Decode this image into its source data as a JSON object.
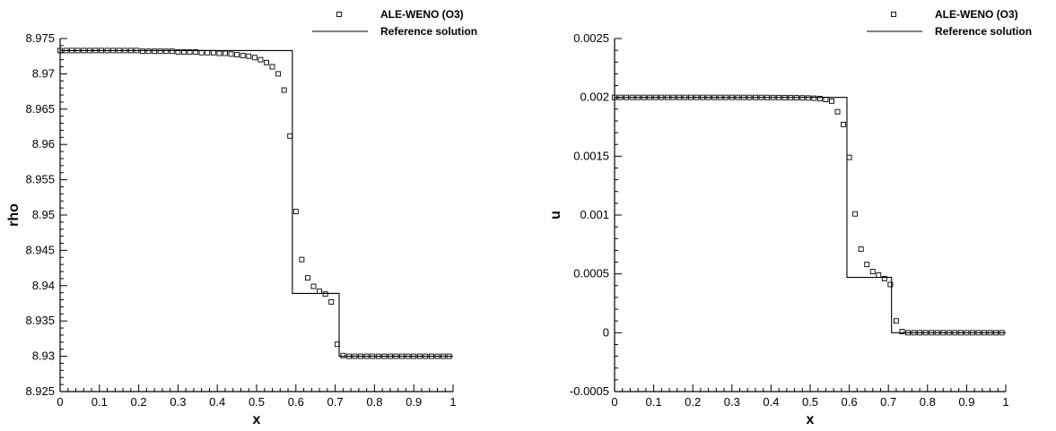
{
  "chart_data": [
    {
      "type": "line",
      "xlabel": "x",
      "ylabel": "rho",
      "xlim": [
        0,
        1
      ],
      "ylim": [
        8.925,
        8.975
      ],
      "xticks": [
        "0",
        "0.1",
        "0.2",
        "0.3",
        "0.4",
        "0.5",
        "0.6",
        "0.7",
        "0.8",
        "0.9",
        "1"
      ],
      "yticks": [
        "8.925",
        "8.93",
        "8.935",
        "8.94",
        "8.945",
        "8.95",
        "8.955",
        "8.96",
        "8.965",
        "8.97",
        "8.975"
      ],
      "legend_position": "top-right",
      "series": [
        {
          "name": "ALE-WENO (O3)",
          "marker": "square",
          "x": [
            0.0,
            0.015,
            0.03,
            0.045,
            0.06,
            0.075,
            0.09,
            0.105,
            0.12,
            0.135,
            0.15,
            0.165,
            0.18,
            0.195,
            0.21,
            0.225,
            0.24,
            0.255,
            0.27,
            0.285,
            0.3,
            0.315,
            0.33,
            0.345,
            0.36,
            0.375,
            0.39,
            0.405,
            0.42,
            0.435,
            0.45,
            0.465,
            0.48,
            0.495,
            0.51,
            0.525,
            0.54,
            0.555,
            0.57,
            0.585,
            0.6,
            0.615,
            0.63,
            0.645,
            0.66,
            0.675,
            0.69,
            0.705,
            0.72,
            0.735,
            0.75,
            0.765,
            0.78,
            0.795,
            0.81,
            0.825,
            0.84,
            0.855,
            0.87,
            0.885,
            0.9,
            0.915,
            0.93,
            0.945,
            0.96,
            0.975,
            0.99
          ],
          "y": [
            8.9733,
            8.9733,
            8.9733,
            8.9733,
            8.9733,
            8.9733,
            8.9733,
            8.9733,
            8.9733,
            8.9733,
            8.9733,
            8.9733,
            8.9733,
            8.9733,
            8.9732,
            8.9732,
            8.9732,
            8.9732,
            8.9732,
            8.9732,
            8.9731,
            8.9731,
            8.9731,
            8.9731,
            8.973,
            8.973,
            8.973,
            8.9729,
            8.9729,
            8.9728,
            8.9727,
            8.9726,
            8.9725,
            8.9723,
            8.972,
            8.9716,
            8.971,
            8.97,
            8.9677,
            8.9612,
            8.9505,
            8.9437,
            8.9411,
            8.9399,
            8.9392,
            8.9388,
            8.9377,
            8.9317,
            8.9301,
            8.93,
            8.93,
            8.93,
            8.93,
            8.93,
            8.93,
            8.93,
            8.93,
            8.93,
            8.93,
            8.93,
            8.93,
            8.93,
            8.93,
            8.93,
            8.93,
            8.93,
            8.93
          ]
        },
        {
          "name": "Reference solution",
          "style": "solid",
          "x": [
            0,
            0.591,
            0.591,
            0.71,
            0.71,
            1
          ],
          "y": [
            8.9733,
            8.9733,
            8.9389,
            8.9389,
            8.93,
            8.93
          ]
        }
      ]
    },
    {
      "type": "line",
      "xlabel": "x",
      "ylabel": "u",
      "xlim": [
        0,
        1
      ],
      "ylim": [
        -0.0005,
        0.0025
      ],
      "xticks": [
        "0",
        "0.1",
        "0.2",
        "0.3",
        "0.4",
        "0.5",
        "0.6",
        "0.7",
        "0.8",
        "0.9",
        "1"
      ],
      "yticks": [
        "-0.0005",
        "0",
        "0.0005",
        "0.001",
        "0.0015",
        "0.002",
        "0.0025"
      ],
      "legend_position": "top-right",
      "series": [
        {
          "name": "ALE-WENO (O3)",
          "marker": "square",
          "x": [
            0.0,
            0.015,
            0.03,
            0.045,
            0.06,
            0.075,
            0.09,
            0.105,
            0.12,
            0.135,
            0.15,
            0.165,
            0.18,
            0.195,
            0.21,
            0.225,
            0.24,
            0.255,
            0.27,
            0.285,
            0.3,
            0.315,
            0.33,
            0.345,
            0.36,
            0.375,
            0.39,
            0.405,
            0.42,
            0.435,
            0.45,
            0.465,
            0.48,
            0.495,
            0.51,
            0.525,
            0.54,
            0.555,
            0.57,
            0.585,
            0.6,
            0.615,
            0.63,
            0.645,
            0.66,
            0.675,
            0.69,
            0.705,
            0.72,
            0.735,
            0.75,
            0.765,
            0.78,
            0.795,
            0.81,
            0.825,
            0.84,
            0.855,
            0.87,
            0.885,
            0.9,
            0.915,
            0.93,
            0.945,
            0.96,
            0.975,
            0.99
          ],
          "y": [
            0.002,
            0.002,
            0.002,
            0.002,
            0.002,
            0.002,
            0.002,
            0.002,
            0.002,
            0.002,
            0.002,
            0.002,
            0.002,
            0.002,
            0.002,
            0.002,
            0.002,
            0.002,
            0.002,
            0.002,
            0.002,
            0.002,
            0.002,
            0.0019995,
            0.0019995,
            0.0019995,
            0.001999,
            0.001999,
            0.0019985,
            0.001998,
            0.0019975,
            0.001997,
            0.001996,
            0.001995,
            0.001993,
            0.001989,
            0.001982,
            0.001968,
            0.001878,
            0.00177,
            0.00149,
            0.00101,
            0.00071,
            0.00058,
            0.00052,
            0.00049,
            0.00046,
            0.00041,
            0.0001,
            1e-05,
            0.0,
            0.0,
            0.0,
            0.0,
            0.0,
            0.0,
            0.0,
            0.0,
            0.0,
            0.0,
            0.0,
            0.0,
            0.0,
            0.0,
            0.0,
            0.0,
            0.0
          ]
        },
        {
          "name": "Reference solution",
          "style": "solid",
          "x": [
            0,
            0.594,
            0.594,
            0.708,
            0.708,
            1
          ],
          "y": [
            0.002,
            0.002,
            0.00047,
            0.00047,
            0.0,
            0.0
          ]
        }
      ]
    }
  ]
}
